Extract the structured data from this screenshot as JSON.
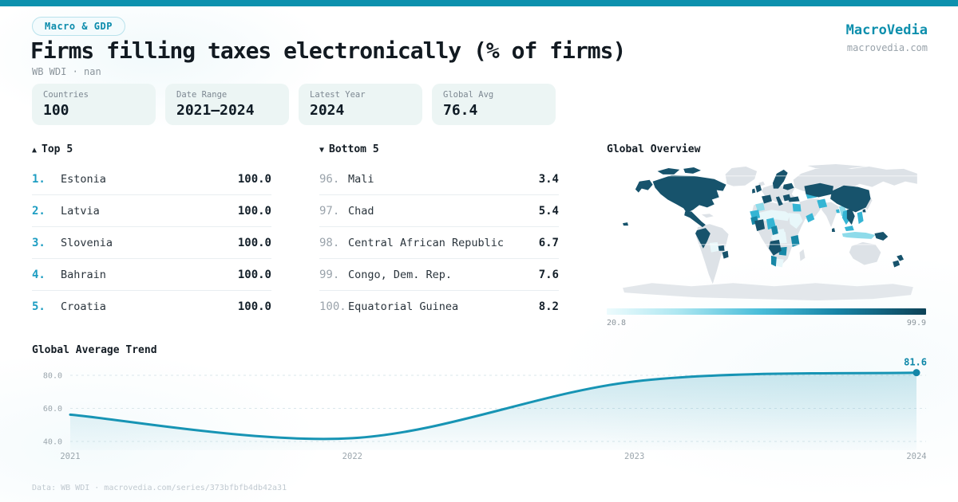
{
  "brand": {
    "name": "MacroVedia",
    "domain": "macrovedia.com"
  },
  "header": {
    "badge": "Macro & GDP",
    "title": "Firms filling taxes electronically (% of firms)",
    "subtitle": "WB WDI · nan"
  },
  "stats": [
    {
      "label": "Countries",
      "value": "100"
    },
    {
      "label": "Date Range",
      "value": "2021—2024"
    },
    {
      "label": "Latest Year",
      "value": "2024"
    },
    {
      "label": "Global Avg",
      "value": "76.4"
    }
  ],
  "lists": {
    "top": {
      "arrow": "▲",
      "title": "Top 5",
      "rows": [
        {
          "rank": "1.",
          "name": "Estonia",
          "value": "100.0"
        },
        {
          "rank": "2.",
          "name": "Latvia",
          "value": "100.0"
        },
        {
          "rank": "3.",
          "name": "Slovenia",
          "value": "100.0"
        },
        {
          "rank": "4.",
          "name": "Bahrain",
          "value": "100.0"
        },
        {
          "rank": "5.",
          "name": "Croatia",
          "value": "100.0"
        }
      ]
    },
    "bottom": {
      "arrow": "▼",
      "title": "Bottom 5",
      "rows": [
        {
          "rank": "96.",
          "name": "Mali",
          "value": "3.4"
        },
        {
          "rank": "97.",
          "name": "Chad",
          "value": "5.4"
        },
        {
          "rank": "98.",
          "name": "Central African Republic",
          "value": "6.7"
        },
        {
          "rank": "99.",
          "name": "Congo, Dem. Rep.",
          "value": "7.6"
        },
        {
          "rank": "100.",
          "name": "Equatorial Guinea",
          "value": "8.2"
        }
      ]
    }
  },
  "chart_data": [
    {
      "type": "line",
      "title": "Global Average Trend",
      "x": [
        2021,
        2022,
        2023,
        2024
      ],
      "values": [
        56.2,
        42.0,
        76.3,
        81.6
      ],
      "yticks": [
        80,
        60,
        40
      ],
      "ylim": [
        35,
        88
      ],
      "grid": true,
      "legend_position": "none",
      "end_label": "81.6",
      "line_color": "#1794B4"
    },
    {
      "type": "heatmap",
      "subtype": "world-choropleth",
      "title": "Global Overview",
      "colorbar_min": 20.8,
      "colorbar_max": 99.9,
      "high_examples": [
        "Canada",
        "United States",
        "Mexico",
        "Peru",
        "Spain",
        "Turkey",
        "Kazakhstan",
        "China",
        "Vietnam",
        "New Zealand",
        "Angola"
      ],
      "low_examples": [
        "Mali",
        "Chad",
        "Central African Republic",
        "Congo, Dem. Rep.",
        "Equatorial Guinea"
      ]
    }
  ],
  "footer": {
    "text": "Data: WB WDI · macrovedia.com/series/373bfbfb4db42a31"
  },
  "colors": {
    "accent": "#0D91AE",
    "dark_map": "#17536C",
    "rank_accent": "#1D9DC2"
  }
}
